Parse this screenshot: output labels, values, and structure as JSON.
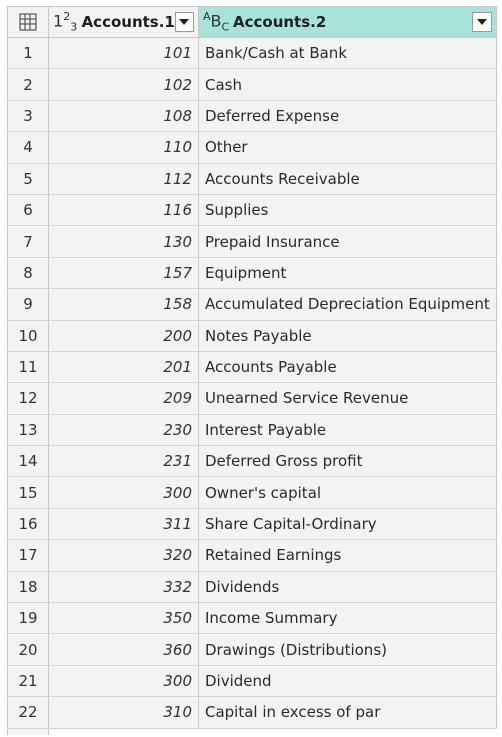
{
  "columns": [
    {
      "type_icon": "whole-number-icon",
      "type_glyph": "1²3",
      "name": "Accounts.1"
    },
    {
      "type_icon": "text-type-icon",
      "type_glyph": "ABC",
      "name": "Accounts.2"
    }
  ],
  "rows": [
    {
      "n": "1",
      "code": "101",
      "name": "Bank/Cash at Bank"
    },
    {
      "n": "2",
      "code": "102",
      "name": "Cash"
    },
    {
      "n": "3",
      "code": "108",
      "name": "Deferred Expense"
    },
    {
      "n": "4",
      "code": "110",
      "name": "Other"
    },
    {
      "n": "5",
      "code": "112",
      "name": "Accounts Receivable"
    },
    {
      "n": "6",
      "code": "116",
      "name": "Supplies"
    },
    {
      "n": "7",
      "code": "130",
      "name": "Prepaid Insurance"
    },
    {
      "n": "8",
      "code": "157",
      "name": "Equipment"
    },
    {
      "n": "9",
      "code": "158",
      "name": "Accumulated Depreciation Equipment"
    },
    {
      "n": "10",
      "code": "200",
      "name": "Notes Payable"
    },
    {
      "n": "11",
      "code": "201",
      "name": "Accounts Payable"
    },
    {
      "n": "12",
      "code": "209",
      "name": "Unearned Service Revenue"
    },
    {
      "n": "13",
      "code": "230",
      "name": "Interest Payable"
    },
    {
      "n": "14",
      "code": "231",
      "name": "Deferred Gross profit"
    },
    {
      "n": "15",
      "code": "300",
      "name": "Owner's capital"
    },
    {
      "n": "16",
      "code": "311",
      "name": "Share Capital-Ordinary"
    },
    {
      "n": "17",
      "code": "320",
      "name": "Retained Earnings"
    },
    {
      "n": "18",
      "code": "332",
      "name": "Dividends"
    },
    {
      "n": "19",
      "code": "350",
      "name": "Income Summary"
    },
    {
      "n": "20",
      "code": "360",
      "name": "Drawings (Distributions)"
    },
    {
      "n": "21",
      "code": "300",
      "name": "Dividend"
    },
    {
      "n": "22",
      "code": "310",
      "name": "Capital in excess of par"
    }
  ],
  "colors": {
    "selected_header": "#a7e3da",
    "cell_bg": "#f3f3f3",
    "grid_line": "#c8c8c8"
  }
}
